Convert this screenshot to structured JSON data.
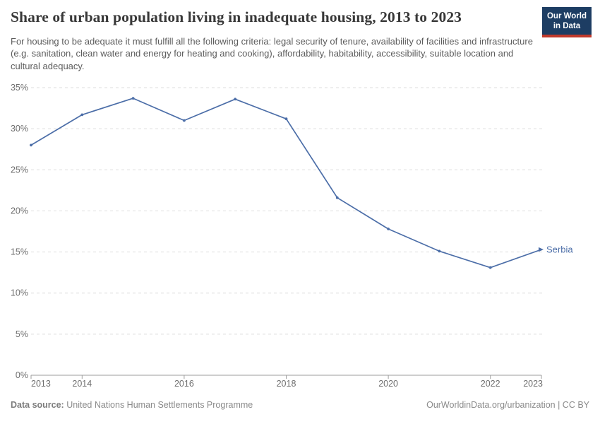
{
  "header": {
    "title": "Share of urban population living in inadequate housing, 2013 to 2023",
    "subtitle": "For housing to be adequate it must fulfill all the following criteria: legal security of tenure, availability of facilities and infrastructure (e.g. sanitation, clean water and energy for heating and cooking), affordability, habitability, accessibility, suitable location and cultural adequacy.",
    "logo": {
      "line1": "Our World",
      "line2": "in Data",
      "bg_color": "#1d3d63",
      "accent_color": "#c0392b"
    }
  },
  "chart_data": {
    "type": "line",
    "title": "Share of urban population living in inadequate housing, 2013 to 2023",
    "x": [
      2013,
      2014,
      2015,
      2016,
      2017,
      2018,
      2019,
      2020,
      2021,
      2022,
      2023
    ],
    "series": [
      {
        "name": "Serbia",
        "color": "#4c6ea8",
        "values": [
          28,
          31.7,
          33.7,
          31,
          33.6,
          31.2,
          21.6,
          17.8,
          15.1,
          13.1,
          15.3
        ]
      }
    ],
    "xlabel": "",
    "ylabel": "",
    "ylim": [
      0,
      35
    ],
    "yticks": [
      0,
      5,
      10,
      15,
      20,
      25,
      30,
      35
    ],
    "ytick_suffix": "%",
    "xticks": [
      2013,
      2014,
      2016,
      2018,
      2020,
      2022,
      2023
    ],
    "grid": "horizontal-dashed",
    "grid_color": "#dedede",
    "axis_color": "#9e9e9e",
    "tick_label_color": "#6e6e6e",
    "legend_position": "end-of-line-label"
  },
  "footer": {
    "datasource_label": "Data source:",
    "datasource_value": "United Nations Human Settlements Programme",
    "attribution": "OurWorldinData.org/urbanization | CC BY"
  }
}
